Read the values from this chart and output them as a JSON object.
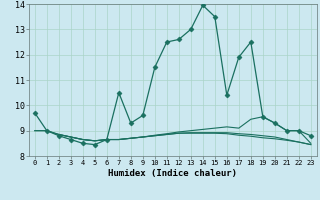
{
  "xlabel": "Humidex (Indice chaleur)",
  "background_color": "#cce8f0",
  "plot_bg_color": "#cce8f0",
  "grid_color": "#aad4c8",
  "line_color": "#1a7060",
  "xlim": [
    -0.5,
    23.5
  ],
  "ylim": [
    8.0,
    14.0
  ],
  "yticks": [
    8,
    9,
    10,
    11,
    12,
    13,
    14
  ],
  "xticks": [
    0,
    1,
    2,
    3,
    4,
    5,
    6,
    7,
    8,
    9,
    10,
    11,
    12,
    13,
    14,
    15,
    16,
    17,
    18,
    19,
    20,
    21,
    22,
    23
  ],
  "line1_x": [
    0,
    1,
    2,
    3,
    4,
    5,
    6,
    7,
    8,
    9,
    10,
    11,
    12,
    13,
    14,
    15,
    16,
    17,
    18,
    19,
    20,
    21,
    22,
    23
  ],
  "line1_y": [
    9.7,
    9.0,
    8.8,
    8.65,
    8.5,
    8.45,
    8.65,
    10.5,
    9.3,
    9.6,
    11.5,
    12.5,
    12.6,
    13.0,
    13.95,
    13.5,
    10.4,
    11.9,
    12.5,
    9.55,
    9.3,
    9.0,
    9.0,
    8.8
  ],
  "line2_x": [
    0,
    1,
    2,
    3,
    4,
    5,
    6,
    7,
    8,
    9,
    10,
    11,
    12,
    13,
    14,
    15,
    16,
    17,
    18,
    19,
    20,
    21,
    22,
    23
  ],
  "line2_y": [
    9.0,
    9.0,
    8.85,
    8.75,
    8.65,
    8.6,
    8.65,
    8.65,
    8.7,
    8.75,
    8.82,
    8.88,
    8.95,
    9.0,
    9.05,
    9.1,
    9.15,
    9.1,
    9.45,
    9.55,
    9.3,
    9.0,
    9.0,
    8.5
  ],
  "line3_x": [
    0,
    1,
    2,
    3,
    4,
    5,
    6,
    7,
    8,
    9,
    10,
    11,
    12,
    13,
    14,
    15,
    16,
    17,
    18,
    19,
    20,
    21,
    22,
    23
  ],
  "line3_y": [
    9.0,
    9.0,
    8.85,
    8.75,
    8.65,
    8.6,
    8.65,
    8.65,
    8.7,
    8.75,
    8.8,
    8.85,
    8.9,
    8.92,
    8.92,
    8.92,
    8.92,
    8.88,
    8.85,
    8.8,
    8.75,
    8.65,
    8.55,
    8.45
  ],
  "line4_x": [
    2,
    3,
    4,
    5,
    6,
    7,
    8,
    9,
    10,
    11,
    12,
    13,
    14,
    15,
    16,
    17,
    18,
    19,
    20,
    21,
    22,
    23
  ],
  "line4_y": [
    8.85,
    8.75,
    8.65,
    8.6,
    8.65,
    8.65,
    8.7,
    8.75,
    8.8,
    8.85,
    8.9,
    8.9,
    8.9,
    8.9,
    8.88,
    8.82,
    8.78,
    8.72,
    8.68,
    8.62,
    8.55,
    8.45
  ]
}
